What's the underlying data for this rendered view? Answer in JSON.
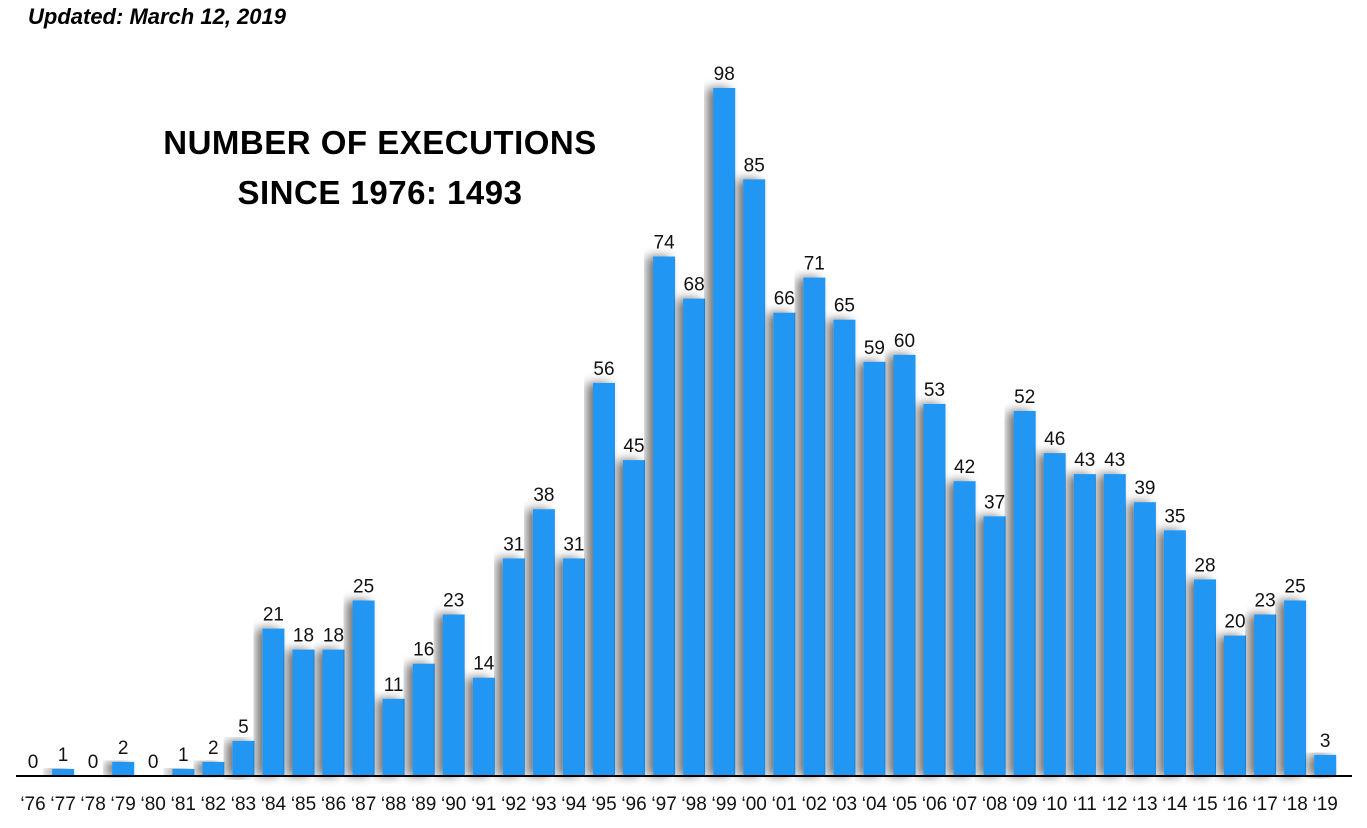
{
  "updated": "Updated: March 12, 2019",
  "title_line1": "NUMBER OF EXECUTIONS",
  "title_line2": "SINCE 1976: 1493",
  "colors": {
    "bar": "#2196f3",
    "axis": "#000000",
    "text": "#111111"
  },
  "chart_data": {
    "type": "bar",
    "title": "NUMBER OF EXECUTIONS SINCE 1976: 1493",
    "xlabel": "",
    "ylabel": "",
    "ylim": [
      0,
      100
    ],
    "grid": false,
    "categories": [
      "‘76",
      "‘77",
      "‘78",
      "‘79",
      "‘80",
      "‘81",
      "‘82",
      "‘83",
      "‘84",
      "‘85",
      "‘86",
      "‘87",
      "‘88",
      "‘89",
      "‘90",
      "‘91",
      "‘92",
      "‘93",
      "‘94",
      "‘95",
      "‘96",
      "‘97",
      "‘98",
      "‘99",
      "‘00",
      "‘01",
      "‘02",
      "‘03",
      "‘04",
      "‘05",
      "‘06",
      "‘07",
      "‘08",
      "‘09",
      "‘10",
      "‘11",
      "‘12",
      "‘13",
      "‘14",
      "‘15",
      "‘16",
      "‘17",
      "‘18",
      "‘19"
    ],
    "values": [
      0,
      1,
      0,
      2,
      0,
      1,
      2,
      5,
      21,
      18,
      18,
      25,
      11,
      16,
      23,
      14,
      31,
      38,
      31,
      56,
      45,
      74,
      68,
      98,
      85,
      66,
      71,
      65,
      59,
      60,
      53,
      42,
      37,
      52,
      46,
      43,
      43,
      39,
      35,
      28,
      20,
      23,
      25,
      3
    ]
  }
}
